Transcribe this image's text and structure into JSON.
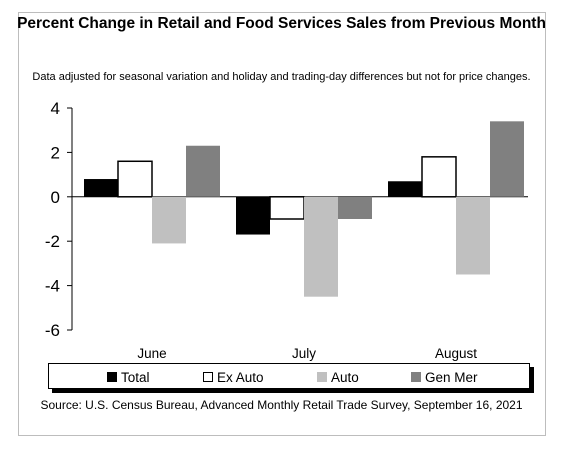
{
  "chart_data": {
    "type": "bar",
    "title": "Percent Change in Retail and Food Services Sales from Previous Month",
    "subtitle": "Data adjusted for seasonal variation and holiday and trading-day differences but not for price changes.",
    "categories": [
      "June",
      "July",
      "August"
    ],
    "series": [
      {
        "name": "Total",
        "values": [
          0.8,
          -1.7,
          0.7
        ],
        "color": "#000000"
      },
      {
        "name": "Ex Auto",
        "values": [
          1.6,
          -1.0,
          1.8
        ],
        "color": "#ffffff"
      },
      {
        "name": "Auto",
        "values": [
          -2.1,
          -4.5,
          -3.5
        ],
        "color": "#c0c0c0"
      },
      {
        "name": "Gen Mer",
        "values": [
          2.3,
          -1.0,
          3.4
        ],
        "color": "#808080"
      }
    ],
    "ylim": [
      -6,
      4
    ],
    "yticks": [
      "4",
      "2",
      "0",
      "-2",
      "-4",
      "-6"
    ],
    "xlabel": "",
    "ylabel": "",
    "grid": false,
    "legend_position": "bottom",
    "source": "Source: U.S. Census Bureau, Advanced Monthly Retail Trade Survey, September 16, 2021"
  }
}
